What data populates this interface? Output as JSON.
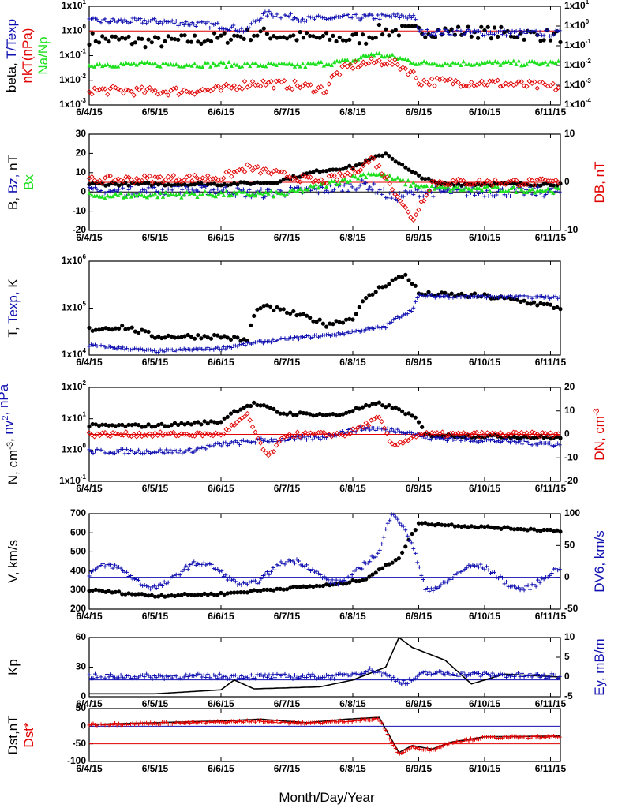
{
  "colors": {
    "black": "#000000",
    "red": "#e00000",
    "blue": "#1010b0",
    "green": "#1ee01e"
  },
  "x_axis": {
    "ticks": [
      "6/4/15",
      "6/5/15",
      "6/6/15",
      "6/7/15",
      "6/8/15",
      "6/9/15",
      "6/10/15",
      "6/11/15"
    ],
    "title": "Month/Day/Year"
  },
  "panels": [
    {
      "left_ticks": [
        "1x10-3",
        "1x10-2",
        "1x10-1",
        "1x100",
        "1x101"
      ],
      "right_ticks": [
        "1x10-4",
        "1x10-3",
        "1x10-2",
        "1x10-1",
        "1x100",
        "1x101"
      ],
      "left_label": [
        {
          "text": "beta, ",
          "color": "#000000"
        },
        {
          "text": "T/Texp",
          "color": "#1010b0"
        }
      ],
      "left_label_2": [
        {
          "text": "nkT(nPa)",
          "color": "#e00000"
        }
      ],
      "left_label_3": [
        {
          "text": "Na/Np",
          "color": "#1ee01e"
        }
      ]
    },
    {
      "left_ticks": [
        "-20",
        "-10",
        "0",
        "10",
        "20",
        "30"
      ],
      "right_ticks": [
        "-10",
        "0",
        "10"
      ],
      "left_label": [
        {
          "text": "B, ",
          "color": "#000000"
        },
        {
          "text": "Bz, ",
          "color": "#1010b0"
        },
        {
          "text": "nT",
          "color": "#000000"
        }
      ],
      "left_label_2": [
        {
          "text": "Bx",
          "color": "#1ee01e"
        }
      ],
      "right_label": [
        {
          "text": "DB, nT",
          "color": "#e00000"
        }
      ]
    },
    {
      "left_ticks": [
        "1x104",
        "1x105",
        "1x106"
      ],
      "left_label": [
        {
          "text": "T, ",
          "color": "#000000"
        },
        {
          "text": "Texp, ",
          "color": "#1010b0"
        },
        {
          "text": "K",
          "color": "#000000"
        }
      ]
    },
    {
      "left_ticks": [
        "1x10-1",
        "1x100",
        "1x101",
        "1x102"
      ],
      "right_ticks": [
        "-20",
        "-10",
        "0",
        "10",
        "20"
      ],
      "left_label": [
        {
          "text": "N, cm-3, ",
          "color": "#000000"
        },
        {
          "text": "nv2, nPa",
          "color": "#1010b0"
        }
      ],
      "right_label": [
        {
          "text": "DN, cm-3",
          "color": "#e00000"
        }
      ]
    },
    {
      "left_ticks": [
        "200",
        "300",
        "400",
        "500",
        "600",
        "700"
      ],
      "right_ticks": [
        "-50",
        "0",
        "50",
        "100"
      ],
      "left_label": [
        {
          "text": "V, km/s",
          "color": "#000000"
        }
      ],
      "right_label": [
        {
          "text": "DV6, km/s",
          "color": "#1010b0"
        }
      ]
    },
    {
      "left_ticks": [
        "0",
        "30",
        "60"
      ],
      "right_ticks": [
        "-5",
        "0",
        "5",
        "10"
      ],
      "left_label": [
        {
          "text": "Kp",
          "color": "#000000"
        }
      ],
      "right_label": [
        {
          "text": "Ey, mB/m",
          "color": "#1010b0"
        }
      ]
    },
    {
      "left_ticks": [
        "-100",
        "-50",
        "0",
        "50"
      ],
      "left_label": [
        {
          "text": "Dst,nT",
          "color": "#000000"
        }
      ],
      "left_label_2": [
        {
          "text": "Dst*",
          "color": "#e00000"
        }
      ]
    }
  ]
}
